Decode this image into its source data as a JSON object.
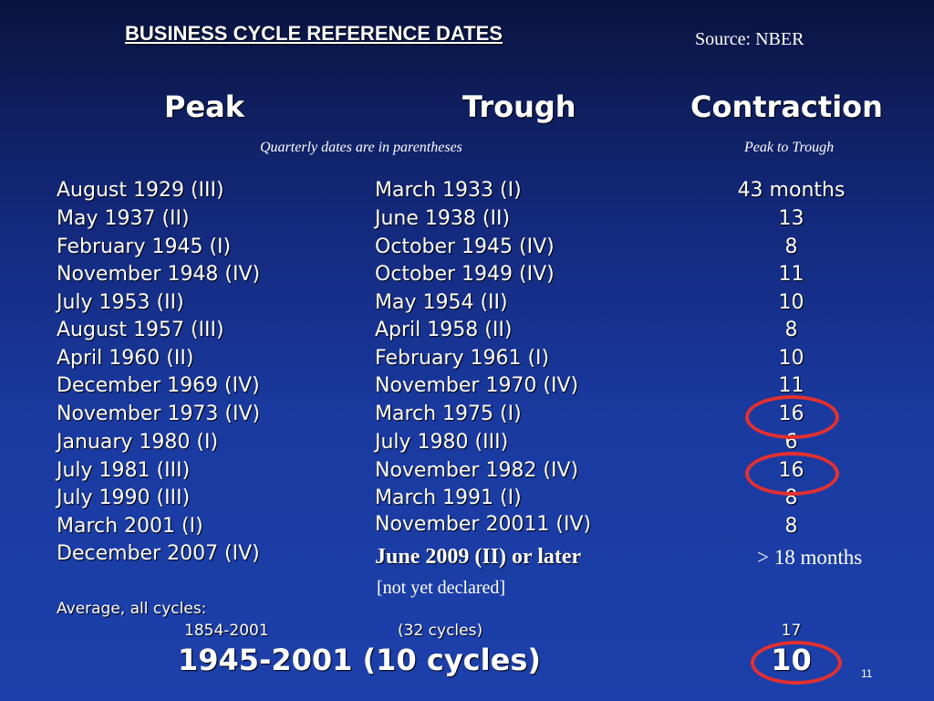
{
  "slide": {
    "title": "BUSINESS CYCLE REFERENCE DATES",
    "source": "Source: NBER",
    "number": "11"
  },
  "headers": {
    "peak": "Peak",
    "trough": "Trough",
    "contraction": "Contraction",
    "quarterly_note": "Quarterly dates are in parentheses",
    "contraction_note": "Peak to Trough"
  },
  "rows": [
    {
      "peak": "August 1929 (III)",
      "trough": "March 1933 (I)",
      "months": "43 months"
    },
    {
      "peak": "May 1937 (II)",
      "trough": "June 1938 (II)",
      "months": "13"
    },
    {
      "peak": "February 1945 (I)",
      "trough": "October 1945 (IV)",
      "months": "8"
    },
    {
      "peak": "November 1948 (IV)",
      "trough": "October 1949 (IV)",
      "months": "11"
    },
    {
      "peak": "July 1953 (II)",
      "trough": "May 1954 (II)",
      "months": "10"
    },
    {
      "peak": "August 1957 (III)",
      "trough": "April 1958 (II)",
      "months": "8"
    },
    {
      "peak": "April 1960 (II)",
      "trough": "February 1961 (I)",
      "months": "10"
    },
    {
      "peak": "December 1969 (IV)",
      "trough": "November 1970 (IV)",
      "months": "11"
    },
    {
      "peak": "November 1973 (IV)",
      "trough": "March 1975 (I)",
      "months": "16"
    },
    {
      "peak": "January 1980 (I)",
      "trough": "July 1980 (III)",
      "months": "6"
    },
    {
      "peak": "July 1981 (III)",
      "trough": "November 1982 (IV)",
      "months": "16"
    },
    {
      "peak": "July 1990 (III)",
      "trough": "March 1991 (I)",
      "months": "8"
    },
    {
      "peak": "March 2001 (I)",
      "trough": "November 20011 (IV)",
      "months": "8"
    }
  ],
  "latest": {
    "peak": "December 2007 (IV)",
    "trough": "June 2009 (II) or later",
    "months": "> 18 months",
    "note": "[not yet declared]"
  },
  "averages": {
    "label": "Average, all cycles:",
    "long_period": "1854-2001",
    "long_cycles": "(32 cycles)",
    "long_value": "17",
    "postwar": "1945-2001 (10 cycles)",
    "postwar_value": "10"
  },
  "highlight_color": "#e3302f"
}
